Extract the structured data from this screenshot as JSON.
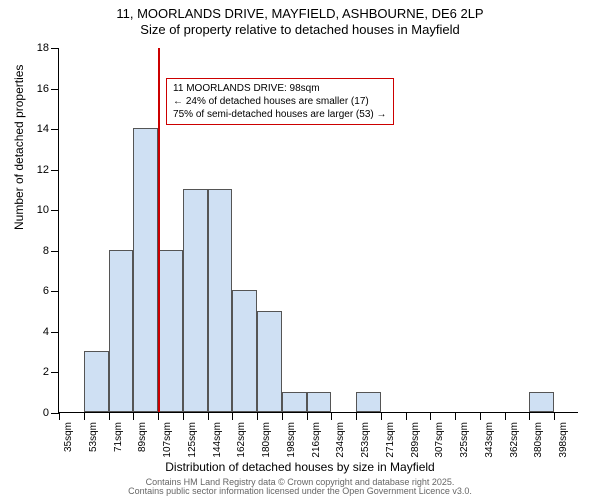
{
  "title_line1": "11, MOORLANDS DRIVE, MAYFIELD, ASHBOURNE, DE6 2LP",
  "title_line2": "Size of property relative to detached houses in Mayfield",
  "ylabel": "Number of detached properties",
  "xlabel": "Distribution of detached houses by size in Mayfield",
  "footer1": "Contains HM Land Registry data © Crown copyright and database right 2025.",
  "footer2": "Contains public sector information licensed under the Open Government Licence v3.0.",
  "chart": {
    "type": "histogram",
    "background_color": "#ffffff",
    "bar_fill": "#cfe0f3",
    "bar_border": "#555555",
    "marker_color": "#cc0000",
    "text_color": "#000000",
    "footer_color": "#666666",
    "y": {
      "min": 0,
      "max": 18,
      "step": 2
    },
    "x_categories": [
      "35sqm",
      "53sqm",
      "71sqm",
      "89sqm",
      "107sqm",
      "125sqm",
      "144sqm",
      "162sqm",
      "180sqm",
      "198sqm",
      "216sqm",
      "234sqm",
      "253sqm",
      "271sqm",
      "289sqm",
      "307sqm",
      "325sqm",
      "343sqm",
      "362sqm",
      "380sqm",
      "398sqm"
    ],
    "bars": [
      {
        "cat": 1,
        "v": 3
      },
      {
        "cat": 2,
        "v": 8
      },
      {
        "cat": 3,
        "v": 14
      },
      {
        "cat": 4,
        "v": 8
      },
      {
        "cat": 5,
        "v": 11
      },
      {
        "cat": 6,
        "v": 11
      },
      {
        "cat": 7,
        "v": 6
      },
      {
        "cat": 8,
        "v": 5
      },
      {
        "cat": 9,
        "v": 1
      },
      {
        "cat": 10,
        "v": 1
      },
      {
        "cat": 12,
        "v": 1
      },
      {
        "cat": 19,
        "v": 1
      }
    ],
    "marker_between": [
      3,
      4
    ],
    "annotation": {
      "line1": "11 MOORLANDS DRIVE: 98sqm",
      "line2": "← 24% of detached houses are smaller (17)",
      "line3": "75% of semi-detached houses are larger (53) →"
    }
  }
}
